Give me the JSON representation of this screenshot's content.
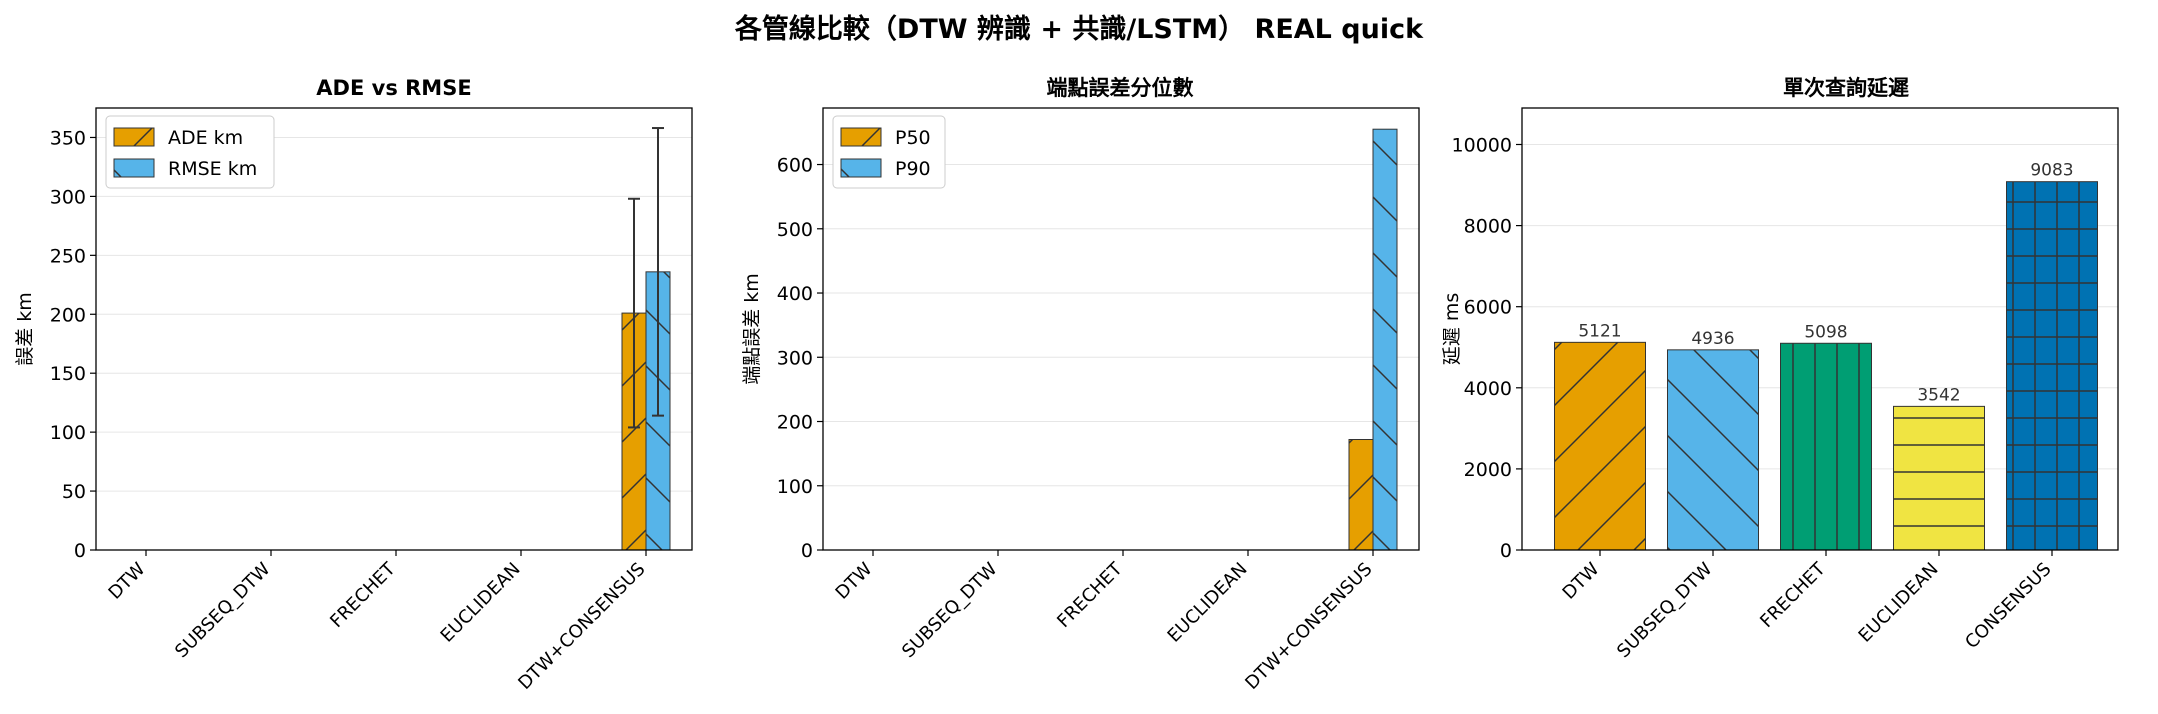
{
  "suptitle": "各管線比較（DTW 辨識 + 共識/LSTM） REAL quick",
  "colors": {
    "orange": "#E69F00",
    "skyblue": "#56B4E9",
    "green": "#009E73",
    "yellow": "#F0E442",
    "blue": "#0072B2",
    "grid": "#e6e6e6",
    "edge": "#333333"
  },
  "chart_data": [
    {
      "type": "bar",
      "title": "ADE vs RMSE",
      "xlabel": "",
      "ylabel": "誤差 km",
      "categories": [
        "DTW",
        "SUBSEQ_DTW",
        "FRECHET",
        "EUCLIDEAN",
        "DTW+CONSENSUS"
      ],
      "ylim": [
        0,
        375
      ],
      "yticks": [
        0,
        50,
        100,
        150,
        200,
        250,
        300,
        350
      ],
      "grid": "horizontal",
      "legend_position": "top-left",
      "series": [
        {
          "name": "ADE km",
          "values": [
            0,
            0,
            0,
            0,
            201
          ],
          "error": [
            0,
            0,
            0,
            0,
            97
          ],
          "color": "#E69F00",
          "hatch": "/"
        },
        {
          "name": "RMSE km",
          "values": [
            0,
            0,
            0,
            0,
            236
          ],
          "error": [
            0,
            0,
            0,
            0,
            122
          ],
          "color": "#56B4E9",
          "hatch": "\\"
        }
      ]
    },
    {
      "type": "bar",
      "title": "端點誤差分位數",
      "xlabel": "",
      "ylabel": "端點誤差 km",
      "categories": [
        "DTW",
        "SUBSEQ_DTW",
        "FRECHET",
        "EUCLIDEAN",
        "DTW+CONSENSUS"
      ],
      "ylim": [
        0,
        688
      ],
      "yticks": [
        0,
        100,
        200,
        300,
        400,
        500,
        600
      ],
      "grid": "horizontal",
      "legend_position": "top-left",
      "series": [
        {
          "name": "P50",
          "values": [
            0,
            0,
            0,
            0,
            172
          ],
          "color": "#E69F00",
          "hatch": "/"
        },
        {
          "name": "P90",
          "values": [
            0,
            0,
            0,
            0,
            655
          ],
          "color": "#56B4E9",
          "hatch": "\\"
        }
      ]
    },
    {
      "type": "bar",
      "title": "單次查詢延遲",
      "xlabel": "",
      "ylabel": "延遲 ms",
      "categories": [
        "DTW",
        "SUBSEQ_DTW",
        "FRECHET",
        "EUCLIDEAN",
        "CONSENSUS"
      ],
      "ylim": [
        0,
        10900
      ],
      "yticks": [
        0,
        2000,
        4000,
        6000,
        8000,
        10000
      ],
      "grid": "horizontal",
      "legend_position": "none",
      "series": [
        {
          "values": [
            5121,
            4936,
            5098,
            3542,
            9083
          ],
          "data_labels": [
            "5121",
            "4936",
            "5098",
            "3542",
            "9083"
          ]
        }
      ],
      "bar_colors": [
        "#E69F00",
        "#56B4E9",
        "#009E73",
        "#F0E442",
        "#0072B2"
      ],
      "bar_hatches": [
        "/",
        "\\",
        "|",
        "-",
        "+"
      ]
    }
  ]
}
